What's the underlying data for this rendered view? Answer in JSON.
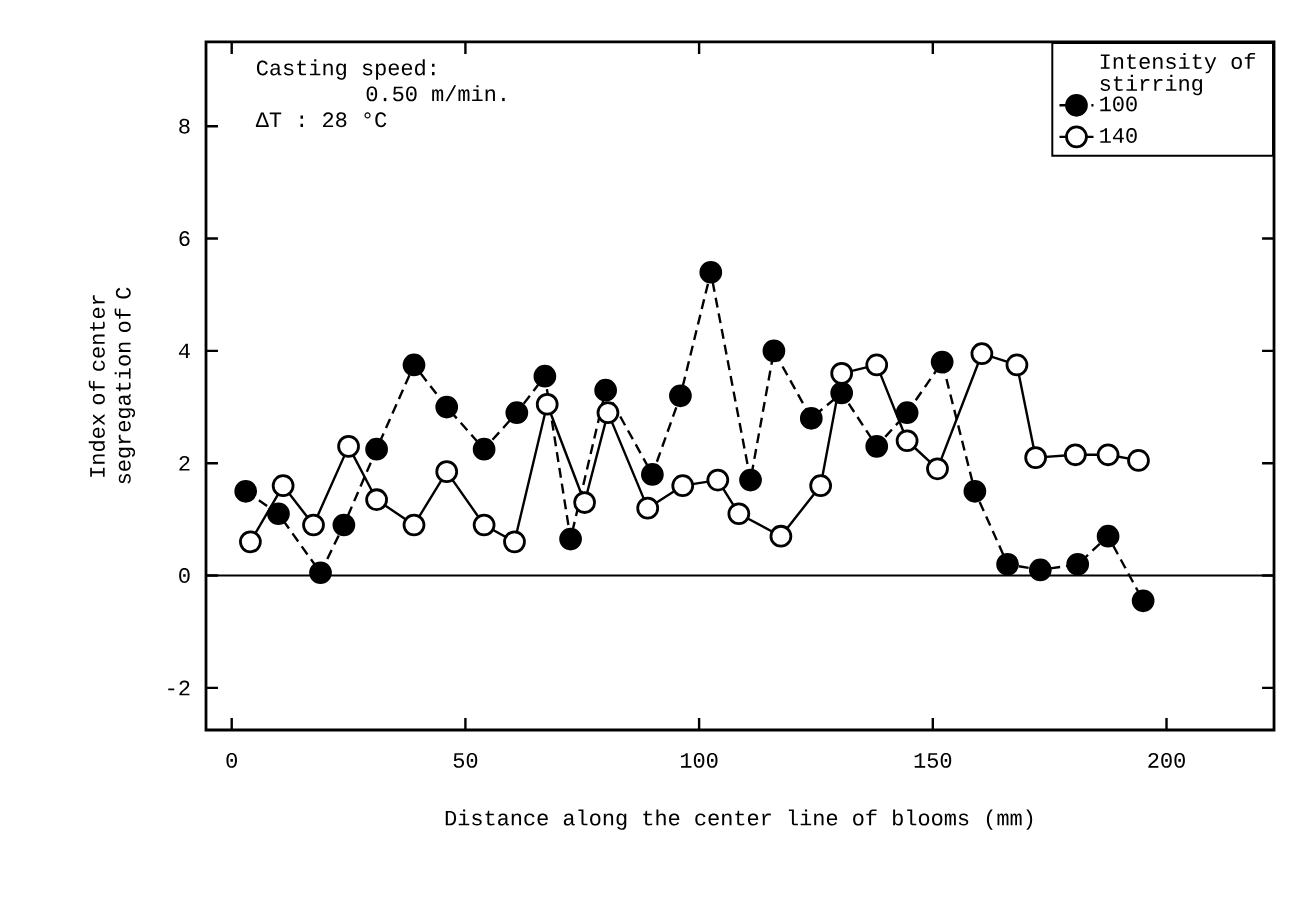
{
  "chart_data": {
    "type": "line",
    "xlabel": "Distance along the center line of blooms (mm)",
    "ylabel": "Index of center segregation of C",
    "legend_title": "Intensity of stirring",
    "annotations": [
      "Casting speed:",
      "0.50 m/min.",
      "ΔT  :  28 °C"
    ],
    "xlim": [
      -5.5,
      223
    ],
    "ylim": [
      -2.75,
      9.5
    ],
    "xticks": [
      0,
      50,
      100,
      150,
      200
    ],
    "yticks": [
      -2,
      0,
      2,
      4,
      6,
      8
    ],
    "ref_lines": [
      {
        "axis": "y",
        "value": 0,
        "color": "#000000",
        "line_style": "solid"
      }
    ],
    "legend": "top right",
    "marker": "circle",
    "grid": false,
    "series": [
      {
        "name": "100",
        "color": "#000000",
        "line_style": "dashed",
        "x": [
          3,
          10,
          19,
          24,
          31,
          39,
          46,
          54,
          61,
          67,
          72.5,
          80,
          90,
          96,
          102.5,
          111,
          116,
          124,
          130.5,
          138,
          144.5,
          152,
          159,
          166,
          173,
          181,
          187.5,
          195
        ],
        "values": [
          1.5,
          1.1,
          0.05,
          0.9,
          2.25,
          3.75,
          3.0,
          2.25,
          2.9,
          3.55,
          0.65,
          3.3,
          1.8,
          3.2,
          5.4,
          1.7,
          4.0,
          2.8,
          3.25,
          2.3,
          2.9,
          3.8,
          1.5,
          0.2,
          0.1,
          0.2,
          0.7,
          -0.45
        ]
      },
      {
        "name": "140",
        "color": "#ffffff",
        "line_style": "solid",
        "x": [
          4,
          11,
          17.5,
          25,
          31,
          39,
          46,
          54,
          60.5,
          67.5,
          75.5,
          80.5,
          89,
          96.5,
          104,
          108.5,
          117.5,
          126,
          130.5,
          138,
          144.5,
          151,
          160.5,
          168,
          172,
          180.5,
          187.5,
          194
        ],
        "values": [
          0.6,
          1.6,
          0.9,
          2.3,
          1.35,
          0.9,
          1.85,
          0.9,
          0.6,
          3.05,
          1.3,
          2.9,
          1.2,
          1.6,
          1.7,
          1.1,
          0.7,
          1.6,
          3.6,
          3.75,
          2.4,
          1.9,
          3.95,
          3.75,
          2.1,
          2.15,
          2.15,
          2.05
        ]
      }
    ]
  }
}
